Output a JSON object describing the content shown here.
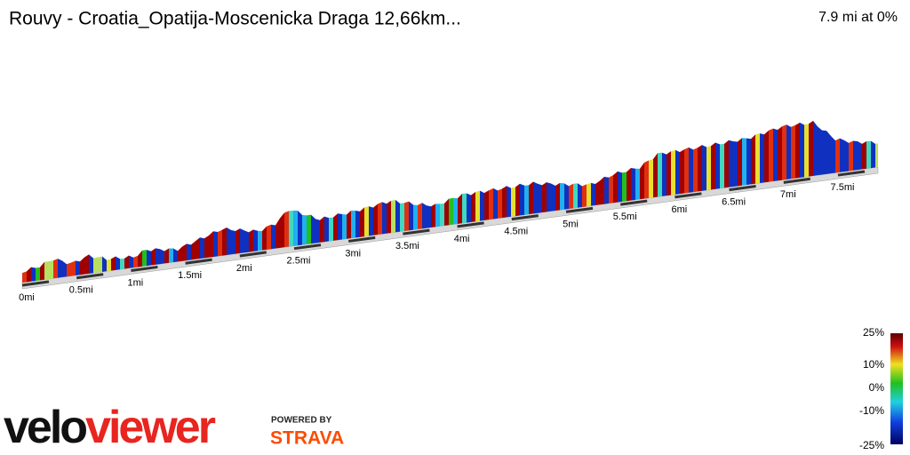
{
  "header": {
    "title": "Rouvy - Croatia_Opatija-Moscenicka Draga 12,66km...",
    "summary": "7.9 mi at 0%"
  },
  "distance_axis": {
    "labels": [
      "0mi",
      "0.5mi",
      "1mi",
      "1.5mi",
      "2mi",
      "2.5mi",
      "3mi",
      "3.5mi",
      "4mi",
      "4.5mi",
      "5mi",
      "5.5mi",
      "6mi",
      "6.5mi",
      "7mi",
      "7.5mi"
    ]
  },
  "grade_legend": {
    "labels": [
      "25%",
      "10%",
      "0%",
      "-10%",
      "-25%"
    ]
  },
  "branding": {
    "logo_left": "velo",
    "logo_right": "viewer",
    "powered_by": "POWERED BY",
    "partner": "STRAVA"
  }
}
